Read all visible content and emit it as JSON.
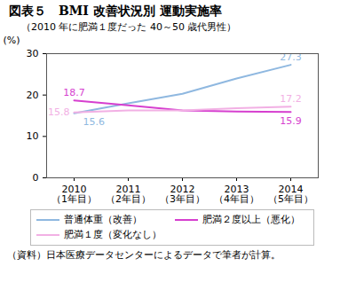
{
  "chart_data": {
    "type": "line",
    "title": "図表５　BMI 改善状況別 運動実施率",
    "subtitle": "（2010 年に肥満１度だった 40～50 歳代男性）",
    "ylabel": "(%)",
    "caption": "（資料）日本医療データセンターによるデータで筆者が計算。",
    "categories": [
      "2010\n（1年目）",
      "2011\n（2年目）",
      "2012\n（3年目）",
      "2013\n（4年目）",
      "2014\n（5年目）"
    ],
    "ylim": [
      0,
      30
    ],
    "yticks": [
      0,
      10,
      20,
      30
    ],
    "grid": false,
    "legend": "bottom",
    "data_labels": true,
    "series": [
      {
        "name": "普通体重（改善）",
        "color": "#8fb8e0",
        "values": [
          15.6,
          18.0,
          20.3,
          24.0,
          27.3
        ],
        "value_labels": [
          "15.6",
          null,
          null,
          null,
          "27.3"
        ]
      },
      {
        "name": "肥満２度以上（悪化）",
        "color": "#d63fcf",
        "values": [
          18.7,
          17.5,
          16.3,
          16.0,
          15.9
        ],
        "value_labels": [
          "18.7",
          null,
          null,
          null,
          "15.9"
        ]
      },
      {
        "name": "肥満１度（変化なし）",
        "color": "#f2b0e4",
        "values": [
          15.8,
          16.3,
          16.3,
          16.8,
          17.2
        ],
        "value_labels": [
          "15.8",
          null,
          null,
          null,
          "17.2"
        ]
      }
    ]
  }
}
